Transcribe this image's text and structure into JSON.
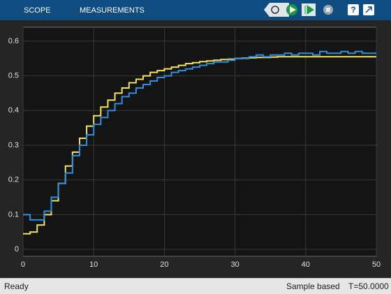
{
  "toolbar": {
    "tabs": [
      "SCOPE",
      "MEASUREMENTS"
    ]
  },
  "status": {
    "state": "Ready",
    "mode": "Sample based",
    "time": "T=50.0000"
  },
  "chart_data": {
    "type": "line",
    "step": true,
    "grid": true,
    "x": [
      0,
      1,
      2,
      3,
      4,
      5,
      6,
      7,
      8,
      9,
      10,
      11,
      12,
      13,
      14,
      15,
      16,
      17,
      18,
      19,
      20,
      21,
      22,
      23,
      24,
      25,
      26,
      27,
      28,
      29,
      30,
      31,
      32,
      33,
      34,
      35,
      36,
      37,
      38,
      39,
      40,
      41,
      42,
      43,
      44,
      45,
      46,
      47,
      48,
      49,
      50
    ],
    "series": [
      {
        "color": "#f2e35c",
        "values": [
          0.045,
          0.05,
          0.07,
          0.1,
          0.14,
          0.19,
          0.24,
          0.28,
          0.32,
          0.355,
          0.385,
          0.41,
          0.43,
          0.45,
          0.465,
          0.48,
          0.49,
          0.5,
          0.51,
          0.515,
          0.52,
          0.525,
          0.53,
          0.535,
          0.538,
          0.541,
          0.543,
          0.545,
          0.547,
          0.548,
          0.55,
          0.551,
          0.552,
          0.553,
          0.553,
          0.554,
          0.555,
          0.555,
          0.555,
          0.555,
          0.555,
          0.555,
          0.555,
          0.555,
          0.555,
          0.555,
          0.555,
          0.555,
          0.555,
          0.555,
          0.555
        ]
      },
      {
        "color": "#2f8fde",
        "values": [
          0.1,
          0.085,
          0.085,
          0.11,
          0.15,
          0.19,
          0.22,
          0.27,
          0.3,
          0.33,
          0.36,
          0.38,
          0.4,
          0.42,
          0.44,
          0.45,
          0.465,
          0.475,
          0.485,
          0.495,
          0.5,
          0.51,
          0.515,
          0.52,
          0.525,
          0.53,
          0.535,
          0.54,
          0.54,
          0.545,
          0.55,
          0.55,
          0.555,
          0.56,
          0.555,
          0.56,
          0.56,
          0.565,
          0.56,
          0.565,
          0.565,
          0.56,
          0.57,
          0.565,
          0.565,
          0.57,
          0.565,
          0.57,
          0.565,
          0.565,
          0.565
        ]
      }
    ],
    "xlim": [
      0,
      50
    ],
    "xticks": [
      0,
      10,
      20,
      30,
      40,
      50
    ],
    "ylim": [
      -0.02,
      0.64
    ],
    "yticks": [
      0,
      0.1,
      0.2,
      0.3,
      0.4,
      0.5,
      0.6
    ]
  }
}
